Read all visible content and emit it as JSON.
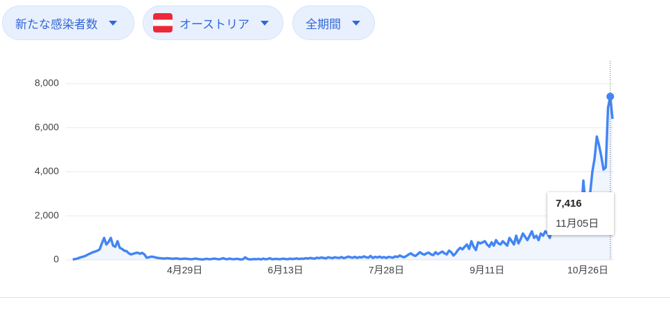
{
  "filters": [
    "新たな感染者数",
    "オーストリア",
    "全期間"
  ],
  "chart_data": {
    "type": "line",
    "color": "#4285f4",
    "categories": [
      null,
      null,
      null,
      null,
      null,
      null,
      null,
      null,
      null,
      null,
      null,
      null,
      null,
      null,
      null,
      null,
      null,
      null,
      null,
      null,
      null,
      null,
      null,
      null,
      null,
      null,
      null,
      null,
      null,
      null,
      null,
      null,
      null,
      null,
      null,
      null,
      null,
      null,
      null,
      null,
      null,
      null,
      null,
      null,
      null,
      null,
      null,
      null,
      null,
      null,
      "4月29日",
      null,
      null,
      null,
      null,
      null,
      null,
      null,
      null,
      null,
      null,
      null,
      null,
      null,
      null,
      null,
      null,
      null,
      null,
      null,
      null,
      null,
      null,
      null,
      null,
      null,
      null,
      null,
      null,
      null,
      null,
      null,
      null,
      null,
      null,
      null,
      null,
      null,
      null,
      null,
      null,
      null,
      null,
      null,
      null,
      "6月13日",
      null,
      null,
      null,
      null,
      null,
      null,
      null,
      null,
      null,
      null,
      null,
      null,
      null,
      null,
      null,
      null,
      null,
      null,
      null,
      null,
      null,
      null,
      null,
      null,
      null,
      null,
      null,
      null,
      null,
      null,
      null,
      null,
      null,
      null,
      null,
      null,
      null,
      null,
      null,
      null,
      null,
      null,
      null,
      null,
      "7月28日",
      null,
      null,
      null,
      null,
      null,
      null,
      null,
      null,
      null,
      null,
      null,
      null,
      null,
      null,
      null,
      null,
      null,
      null,
      null,
      null,
      null,
      null,
      null,
      null,
      null,
      null,
      null,
      null,
      null,
      null,
      null,
      null,
      null,
      null,
      null,
      null,
      null,
      null,
      null,
      null,
      null,
      null,
      null,
      null,
      "9月11日",
      null,
      null,
      null,
      null,
      null,
      null,
      null,
      null,
      null,
      null,
      null,
      null,
      null,
      null,
      null,
      null,
      null,
      null,
      null,
      null,
      null,
      null,
      null,
      null,
      null,
      null,
      null,
      null,
      null,
      null,
      null,
      null,
      null,
      null,
      null,
      null,
      null,
      null,
      null,
      null,
      null,
      null,
      null,
      null,
      "10月26日",
      null,
      null,
      null,
      null,
      null,
      null,
      null,
      null,
      null,
      null,
      null
    ],
    "values": [
      20,
      40,
      60,
      100,
      130,
      160,
      200,
      260,
      300,
      350,
      380,
      420,
      480,
      750,
      1000,
      700,
      820,
      1000,
      650,
      600,
      850,
      550,
      500,
      420,
      400,
      300,
      250,
      280,
      310,
      330,
      280,
      320,
      250,
      100,
      120,
      150,
      140,
      110,
      90,
      80,
      70,
      60,
      80,
      70,
      60,
      50,
      70,
      60,
      40,
      50,
      60,
      50,
      40,
      30,
      50,
      60,
      40,
      30,
      20,
      40,
      50,
      30,
      40,
      60,
      50,
      30,
      40,
      80,
      50,
      30,
      60,
      40,
      30,
      50,
      40,
      20,
      30,
      120,
      50,
      20,
      30,
      40,
      30,
      50,
      20,
      60,
      30,
      40,
      80,
      30,
      40,
      50,
      30,
      40,
      60,
      40,
      30,
      60,
      40,
      50,
      70,
      40,
      60,
      50,
      80,
      60,
      90,
      70,
      60,
      100,
      80,
      110,
      90,
      70,
      120,
      100,
      80,
      120,
      100,
      90,
      130,
      80,
      110,
      150,
      120,
      100,
      140,
      90,
      130,
      110,
      160,
      120,
      100,
      180,
      90,
      140,
      110,
      150,
      100,
      130,
      90,
      140,
      120,
      100,
      160,
      130,
      200,
      150,
      120,
      180,
      250,
      300,
      220,
      180,
      260,
      350,
      280,
      240,
      300,
      330,
      250,
      220,
      350,
      260,
      320,
      380,
      300,
      250,
      420,
      350,
      200,
      300,
      450,
      550,
      480,
      600,
      700,
      500,
      850,
      600,
      450,
      800,
      750,
      800,
      850,
      700,
      600,
      800,
      650,
      900,
      750,
      700,
      850,
      750,
      650,
      1000,
      850,
      700,
      1100,
      750,
      950,
      1200,
      1050,
      900,
      1100,
      1300,
      1000,
      1100,
      900,
      1200,
      1100,
      1300,
      1200,
      1000,
      1400,
      1300,
      1500,
      1200,
      1600,
      1400,
      1800,
      1500,
      1900,
      1700,
      2000,
      1800,
      2200,
      2000,
      3600,
      2400,
      2500,
      3000,
      4000,
      4600,
      5600,
      5200,
      4700,
      4100,
      4200,
      6900,
      7416,
      6400
    ],
    "value_labels": [
      null,
      null,
      null,
      null,
      null,
      null,
      null,
      null,
      null,
      null,
      null,
      null,
      null,
      null,
      null,
      null,
      null,
      null,
      null,
      null,
      null,
      null,
      null,
      null,
      null,
      null,
      null,
      null,
      null,
      null,
      null,
      null,
      null,
      null,
      null,
      null,
      null,
      null,
      null,
      null,
      null,
      null,
      null,
      null,
      null,
      null,
      null,
      null,
      null,
      null,
      null,
      null,
      null,
      null,
      null,
      null,
      null,
      null,
      null,
      null,
      null,
      null,
      null,
      null,
      null,
      null,
      null,
      null,
      null,
      null,
      null,
      null,
      null,
      null,
      null,
      null,
      null,
      null,
      null,
      null,
      null,
      null,
      null,
      null,
      null,
      null,
      null,
      null,
      null,
      null,
      null,
      null,
      null,
      null,
      null,
      null,
      null,
      null,
      null,
      null,
      null,
      null,
      null,
      null,
      null,
      null,
      null,
      null,
      null,
      null,
      null,
      null,
      null,
      null,
      null,
      null,
      null,
      null,
      null,
      null,
      null,
      null,
      null,
      null,
      null,
      null,
      null,
      null,
      null,
      null,
      null,
      null,
      null,
      null,
      null,
      null,
      null,
      null,
      null,
      null,
      null,
      null,
      null,
      null,
      null,
      null,
      null,
      null,
      null,
      null,
      null,
      null,
      null,
      null,
      null,
      null,
      null,
      null,
      null,
      null,
      null,
      null,
      null,
      null,
      null,
      null,
      null,
      null,
      null,
      null,
      null,
      null,
      null,
      null,
      null,
      null,
      null,
      null,
      null,
      null,
      null,
      null,
      null,
      null,
      null,
      null,
      null,
      null,
      null,
      null,
      null,
      null,
      null,
      null,
      null,
      null,
      null,
      null,
      null,
      null,
      null,
      null,
      null,
      null,
      null,
      null,
      null,
      null,
      null,
      null,
      null,
      null,
      null,
      null,
      null,
      null,
      null,
      null,
      null,
      null,
      null,
      null,
      null,
      null,
      null,
      null,
      null,
      null,
      null,
      null,
      null,
      null,
      null,
      null,
      null,
      null,
      null,
      null,
      null,
      null,
      "7,416",
      null
    ],
    "tooltip_date": "11月05日",
    "ylim": [
      0,
      8000
    ],
    "yticks": [
      0,
      {
        "value": 2000,
        "label": "2,000"
      },
      {
        "value": 4000,
        "label": "4,000"
      },
      {
        "value": 6000,
        "label": "6,000"
      },
      {
        "value": 8000,
        "label": "8,000"
      }
    ],
    "grid": true
  }
}
